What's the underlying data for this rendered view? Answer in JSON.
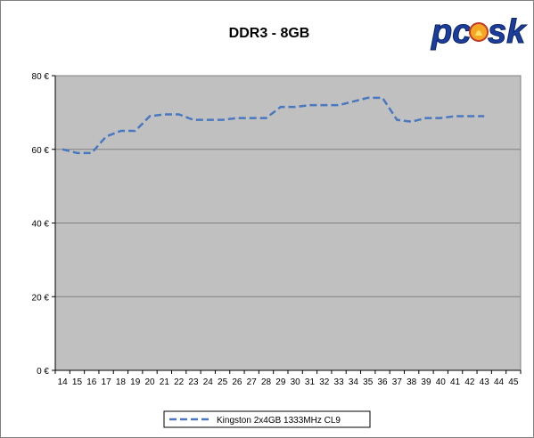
{
  "chart_data": {
    "type": "line",
    "title": "DDR3 - 8GB",
    "categories": [
      "14",
      "15",
      "16",
      "17",
      "18",
      "19",
      "20",
      "21",
      "22",
      "23",
      "24",
      "25",
      "26",
      "27",
      "28",
      "29",
      "30",
      "31",
      "32",
      "33",
      "34",
      "35",
      "36",
      "37",
      "38",
      "39",
      "40",
      "41",
      "42",
      "43",
      "44",
      "45"
    ],
    "series": [
      {
        "name": "Kingston 2x4GB 1333MHz CL9",
        "color": "#4a78c0",
        "style": "dashed",
        "values": [
          60,
          59,
          59,
          63.5,
          65,
          65,
          69,
          69.5,
          69.5,
          68,
          68,
          68,
          68.5,
          68.5,
          68.5,
          71.5,
          71.5,
          72,
          72,
          72,
          73,
          74,
          74,
          68,
          67.5,
          68.5,
          68.5,
          69,
          69,
          69,
          null,
          null
        ]
      }
    ],
    "y_ticks": [
      "0 €",
      "20 €",
      "40 €",
      "60 €",
      "80 €"
    ],
    "ylim": [
      0,
      80
    ],
    "y_step": 20,
    "grid": true,
    "plot_background": "#c0c0c0",
    "legend_position": "bottom",
    "logo": {
      "text": "pcesk",
      "color": "#1b3e9c"
    }
  }
}
